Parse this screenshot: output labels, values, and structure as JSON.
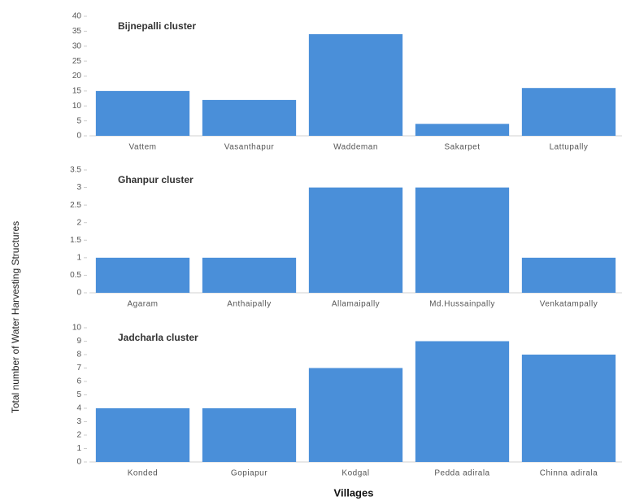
{
  "figure": {
    "ylabel": "Total number of Water Harvesting Structures",
    "xlabel": "Villages"
  },
  "chart_data": [
    {
      "type": "bar",
      "title": "Bijnepalli cluster",
      "categories": [
        "Vattem",
        "Vasanthapur",
        "Waddeman",
        "Sakarpet",
        "Lattupally"
      ],
      "values": [
        15,
        12,
        34,
        4,
        16
      ],
      "color": "#4a8fd9",
      "ylim": [
        0,
        40
      ],
      "yticks": [
        0,
        5,
        10,
        15,
        20,
        25,
        30,
        35,
        40
      ]
    },
    {
      "type": "bar",
      "title": "Ghanpur cluster",
      "categories": [
        "Agaram",
        "Anthaipally",
        "Allamaipally",
        "Md.Hussainpally",
        "Venkatampally"
      ],
      "values": [
        1,
        1,
        3,
        3,
        1
      ],
      "color": "#4a8fd9",
      "ylim": [
        0,
        3.5
      ],
      "yticks": [
        0,
        0.5,
        1,
        1.5,
        2,
        2.5,
        3,
        3.5
      ]
    },
    {
      "type": "bar",
      "title": "Jadcharla cluster",
      "categories": [
        "Konded",
        "Gopiapur",
        "Kodgal",
        "Pedda adirala",
        "Chinna adirala"
      ],
      "values": [
        4,
        4,
        7,
        9,
        8
      ],
      "color": "#4a8fd9",
      "ylim": [
        0,
        10
      ],
      "yticks": [
        0,
        1,
        2,
        3,
        4,
        5,
        6,
        7,
        8,
        9,
        10
      ]
    }
  ]
}
